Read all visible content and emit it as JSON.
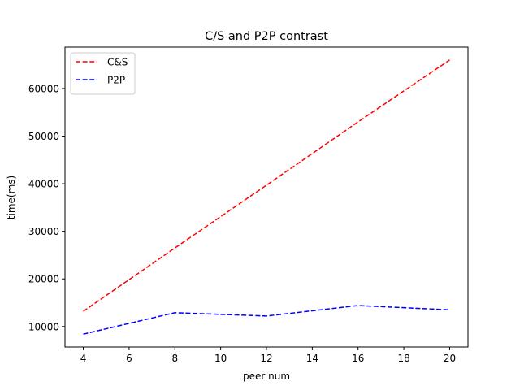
{
  "chart_data": {
    "type": "line",
    "title": "C/S and P2P contrast",
    "xlabel": "peer num",
    "ylabel": "time(ms)",
    "xlim": [
      3.2,
      20.8
    ],
    "ylim": [
      5700,
      68700
    ],
    "xticks": [
      4,
      6,
      8,
      10,
      12,
      14,
      16,
      18,
      20
    ],
    "yticks": [
      10000,
      20000,
      30000,
      40000,
      50000,
      60000
    ],
    "grid": false,
    "legend_position": "top-left",
    "x": [
      4,
      8,
      12,
      16,
      20
    ],
    "series": [
      {
        "name": "C&S",
        "color": "#ff0000",
        "dash": "dashed",
        "values": [
          13200,
          26500,
          39700,
          53000,
          66000
        ]
      },
      {
        "name": "P2P",
        "color": "#0000ff",
        "dash": "dashed",
        "values": [
          8400,
          12900,
          12200,
          14400,
          13500
        ]
      }
    ]
  }
}
